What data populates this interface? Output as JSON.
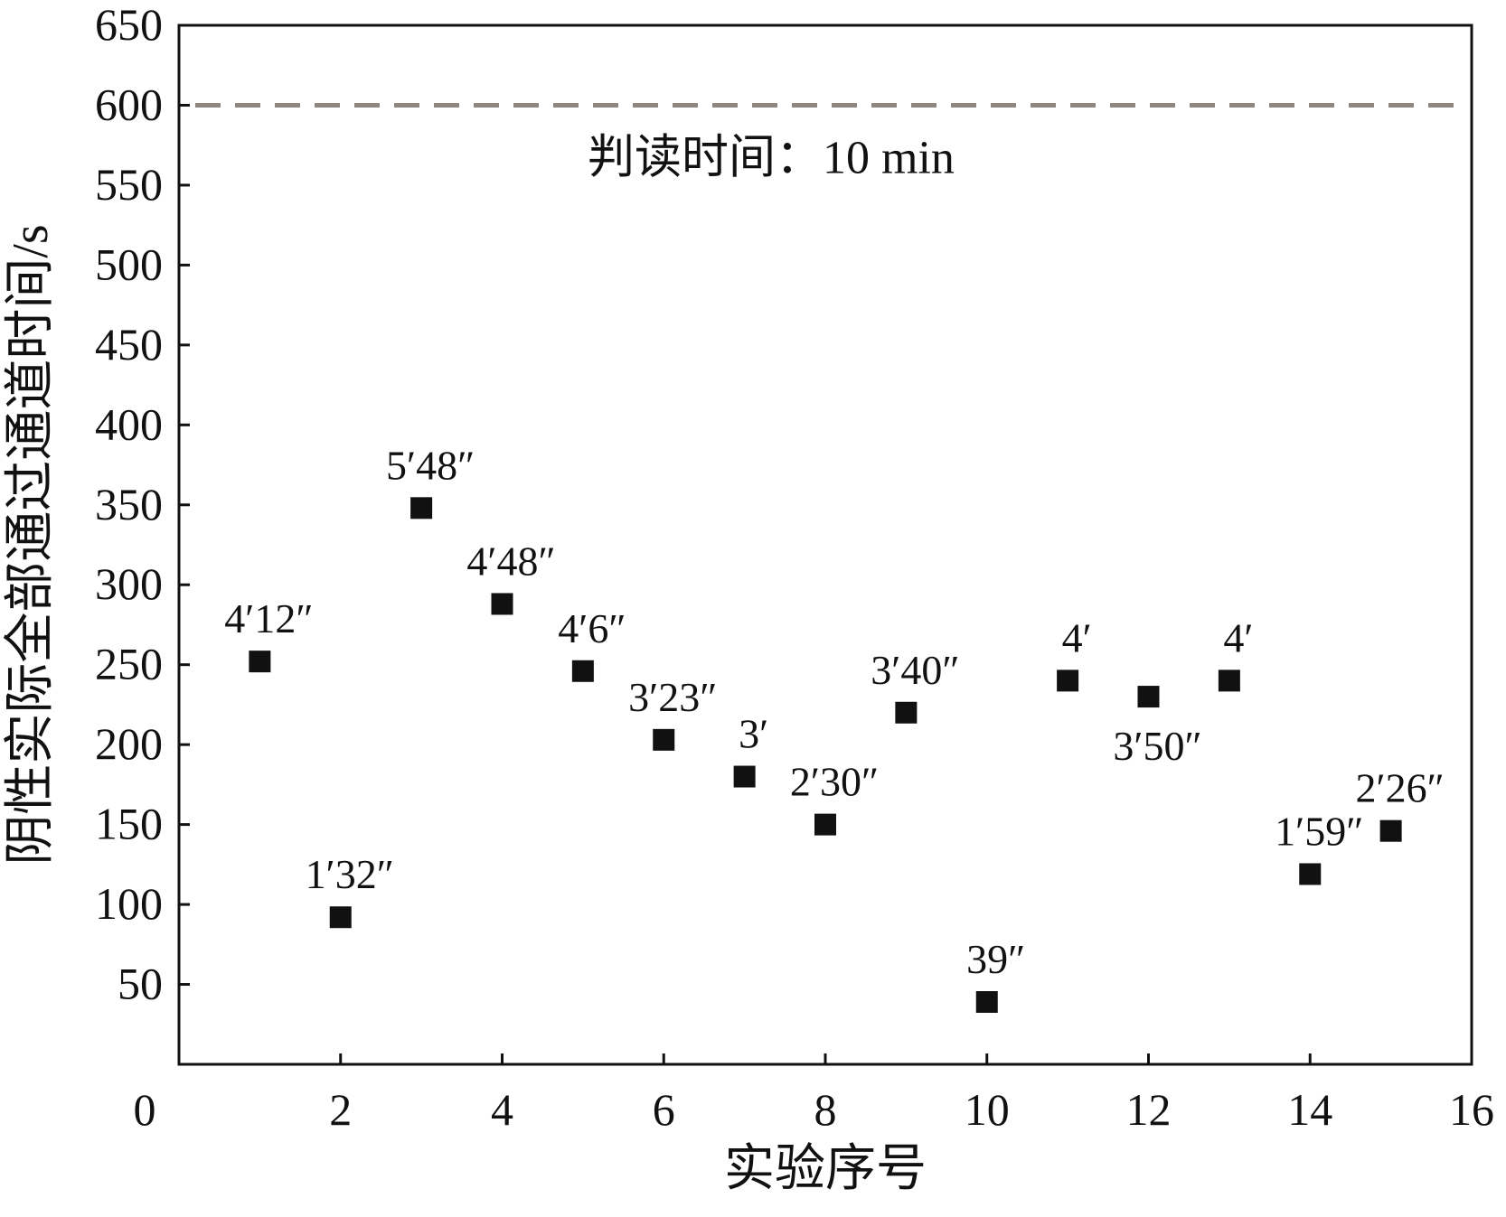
{
  "chart_data": {
    "type": "scatter",
    "title": "",
    "xlabel": "实验序号",
    "ylabel": "阴性实际全部通过通道时间/s",
    "xlim": [
      0,
      16
    ],
    "ylim": [
      0,
      650
    ],
    "x_ticks": [
      0,
      2,
      4,
      6,
      8,
      10,
      12,
      14,
      16
    ],
    "y_ticks": [
      50,
      100,
      150,
      200,
      250,
      300,
      350,
      400,
      450,
      500,
      550,
      600,
      650
    ],
    "x_tick_labels": [
      "0",
      "2",
      "4",
      "6",
      "8",
      "10",
      "12",
      "14",
      "16"
    ],
    "y_tick_labels": [
      "50",
      "100",
      "150",
      "200",
      "250",
      "300",
      "350",
      "400",
      "450",
      "500",
      "550",
      "600",
      "650"
    ],
    "grid": false,
    "marker": "square",
    "marker_color": "#111111",
    "points": [
      {
        "x": 1,
        "y": 252,
        "label": "4′12″"
      },
      {
        "x": 2,
        "y": 92,
        "label": "1′32″"
      },
      {
        "x": 3,
        "y": 348,
        "label": "5′48″"
      },
      {
        "x": 4,
        "y": 288,
        "label": "4′48″"
      },
      {
        "x": 5,
        "y": 246,
        "label": "4′6″"
      },
      {
        "x": 6,
        "y": 203,
        "label": "3′23″"
      },
      {
        "x": 7,
        "y": 180,
        "label": "3′"
      },
      {
        "x": 8,
        "y": 150,
        "label": "2′30″"
      },
      {
        "x": 9,
        "y": 220,
        "label": "3′40″"
      },
      {
        "x": 10,
        "y": 39,
        "label": "39″"
      },
      {
        "x": 11,
        "y": 240,
        "label": "4′"
      },
      {
        "x": 12,
        "y": 230,
        "label": "3′50″"
      },
      {
        "x": 13,
        "y": 240,
        "label": "4′"
      },
      {
        "x": 14,
        "y": 119,
        "label": "1′59″"
      },
      {
        "x": 15,
        "y": 146,
        "label": "2′26″"
      }
    ],
    "reference_line": {
      "y": 600,
      "style": "dashed",
      "color": "#8c8580",
      "label": "判读时间：10 min"
    }
  }
}
